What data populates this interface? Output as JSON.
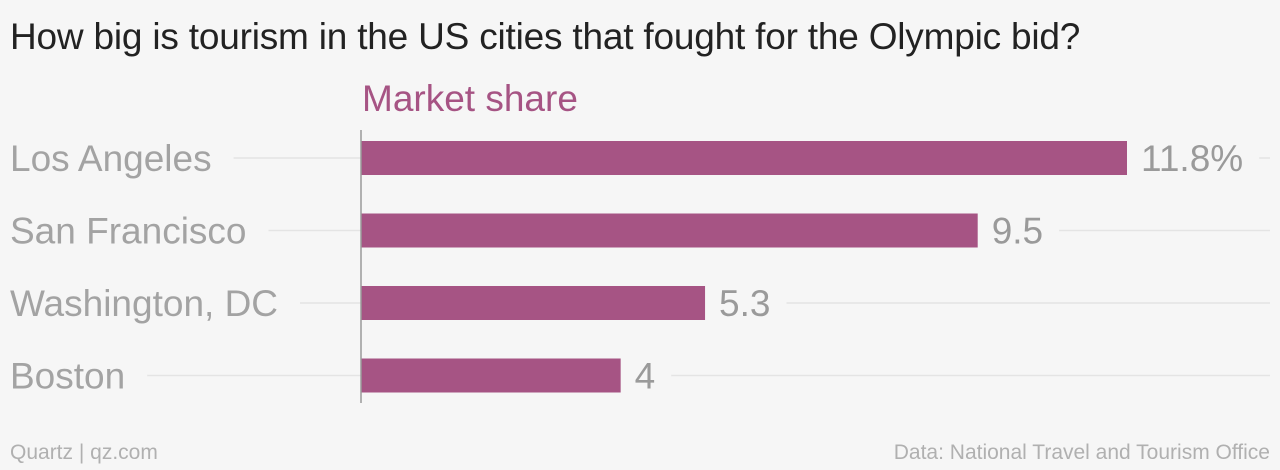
{
  "chart_data": {
    "type": "bar",
    "orientation": "horizontal",
    "title": "How big is tourism in the US cities that fought for the Olympic bid?",
    "series_label": "Market share",
    "categories": [
      "Los Angeles",
      "San Francisco",
      "Washington, DC",
      "Boston"
    ],
    "values": [
      11.8,
      9.5,
      5.3,
      4
    ],
    "value_labels": [
      "11.8%",
      "9.5",
      "5.3",
      "4"
    ],
    "xlim": [
      0,
      11.8
    ],
    "grid": true,
    "legend": "none"
  },
  "colors": {
    "bar": "#a65484",
    "category_text": "#a3a3a3",
    "value_text": "#9a9a9a",
    "gridline": "#e4e4e4",
    "axis": "#9a9a9a"
  },
  "footer": {
    "source_left": "Quartz | qz.com",
    "source_right": "Data: National Travel and Tourism Office"
  }
}
